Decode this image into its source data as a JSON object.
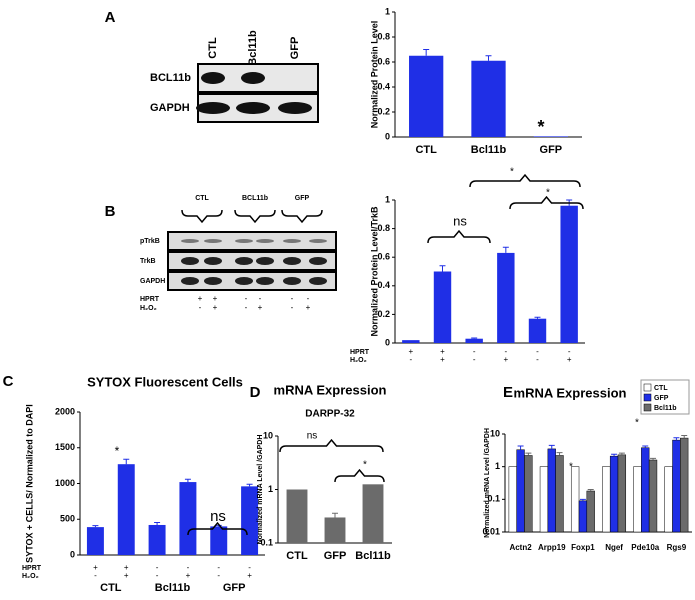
{
  "panels": [
    "A",
    "B",
    "C",
    "D",
    "E"
  ],
  "blots": [
    {
      "lanes": [
        "CTL",
        "Bcl11b",
        "GFP"
      ],
      "rows": [
        "BCL11b",
        "GAPDH"
      ]
    },
    {
      "groups": [
        "CTL",
        "BCL11b",
        "GFP"
      ],
      "rows": [
        "pTrkB",
        "TrkB",
        "GAPDH"
      ],
      "conditions": [
        {
          "name": "HPRT",
          "signs": [
            "+",
            "+",
            "-",
            "-",
            "-",
            "-"
          ]
        },
        {
          "name": "H₂O₂",
          "signs": [
            "-",
            "+",
            "-",
            "+",
            "-",
            "+"
          ]
        }
      ]
    }
  ],
  "chart_data": [
    {
      "type": "bar",
      "y_label": "Normalized Protein Level",
      "categories": [
        "CTL",
        "Bcl11b",
        "GFP"
      ],
      "values": [
        0.65,
        0.61,
        0.005
      ],
      "errors": [
        0.05,
        0.04,
        0
      ],
      "color": "#1f2fe6",
      "ylim": [
        0,
        1
      ],
      "yticks": [
        0,
        0.2,
        0.4,
        0.6,
        0.8,
        1
      ],
      "annotations": [
        "*"
      ]
    },
    {
      "type": "bar",
      "y_label": "Normalized Protein Level/TrkB",
      "categories": [
        null,
        null,
        null,
        null,
        null,
        null
      ],
      "values": [
        0.02,
        0.5,
        0.03,
        0.63,
        0.17,
        0.96
      ],
      "errors": [
        0,
        0.04,
        0.005,
        0.04,
        0.01,
        0.04
      ],
      "color": "#1f2fe6",
      "ylim": [
        0,
        1
      ],
      "yticks": [
        0,
        0.2,
        0.4,
        0.6,
        0.8,
        1
      ],
      "annotations": [
        "ns",
        "*",
        "*"
      ],
      "conditions": [
        {
          "name": "HPRT",
          "signs": [
            "+",
            "+",
            "-",
            "-",
            "-",
            "-"
          ]
        },
        {
          "name": "H₂O₂",
          "signs": [
            "-",
            "+",
            "-",
            "+",
            "-",
            "+"
          ]
        }
      ]
    },
    {
      "type": "bar",
      "title": "SYTOX Fluorescent Cells",
      "y_label": "SYTOX + CELLS/ Normalized to DAPI",
      "categories": [
        null,
        null,
        null,
        null,
        null,
        null
      ],
      "groups": [
        "CTL",
        "Bcl11b",
        "GFP"
      ],
      "values": [
        390,
        1270,
        420,
        1020,
        400,
        960
      ],
      "errors": [
        20,
        70,
        35,
        40,
        15,
        30
      ],
      "color": "#1f2fe6",
      "ylim": [
        0,
        2000
      ],
      "yticks": [
        0,
        500,
        1000,
        1500,
        2000
      ],
      "annotations": [
        "*",
        "ns"
      ],
      "conditions": [
        {
          "name": "HPRT",
          "signs": [
            "+",
            "+",
            "-",
            "-",
            "-",
            "-"
          ]
        },
        {
          "name": "H₂O₂",
          "signs": [
            "-",
            "+",
            "-",
            "+",
            "-",
            "+"
          ]
        }
      ]
    },
    {
      "type": "bar",
      "title": "mRNA Expression",
      "subtitle": "DARPP-32",
      "y_label": "Normalized mRNA Level /GAPDH",
      "categories": [
        "CTL",
        "GFP",
        "Bcl11b"
      ],
      "values": [
        1,
        0.3,
        1.25
      ],
      "errors": [
        0,
        0.06,
        0
      ],
      "color": "#6b6b6b",
      "log_scale": true,
      "ylim": [
        0.1,
        10
      ],
      "yticks": [
        0.1,
        1,
        10
      ],
      "annotations": [
        "ns",
        "*"
      ]
    },
    {
      "type": "bar",
      "title": "mRNA Expression",
      "y_label": "Normalized mRNA Level /GAPDH",
      "categories": [
        "Actn2",
        "Arpp19",
        "Foxp1",
        "Ngef",
        "Pde10a",
        "Rgs9"
      ],
      "series": [
        {
          "name": "CTL",
          "color": "#ffffff",
          "values": [
            1,
            1,
            1,
            1,
            1,
            1
          ]
        },
        {
          "name": "GFP",
          "color": "#1f2fe6",
          "values": [
            3.3,
            3.5,
            0.09,
            2.1,
            3.8,
            6.5
          ],
          "errors": [
            1,
            1,
            0.01,
            0.3,
            0.5,
            1.2
          ]
        },
        {
          "name": "Bcl11b",
          "color": "#6b6b6b",
          "values": [
            2.2,
            2.2,
            0.18,
            2.3,
            1.6,
            7.5
          ],
          "errors": [
            0.4,
            0.5,
            0.02,
            0.3,
            0.2,
            1.5
          ]
        }
      ],
      "log_scale": true,
      "ylim": [
        0.01,
        10
      ],
      "yticks": [
        0.01,
        0.1,
        1,
        10
      ],
      "legend": "top-right",
      "annotations": [
        "*",
        "*"
      ]
    }
  ]
}
